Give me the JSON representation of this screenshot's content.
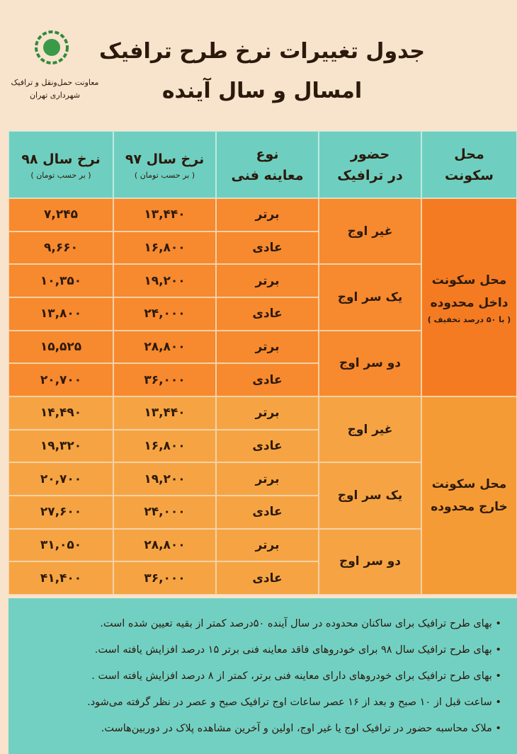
{
  "header": {
    "title_line1": "جدول تغییرات نرخ طرح ترافیک",
    "title_line2": "امسال و سال آینده",
    "org_line1": "معاونت حمل‌ونقل و ترافیک",
    "org_line2": "شهرداری تهران"
  },
  "table": {
    "columns": {
      "residence": [
        "محل",
        "سکونت"
      ],
      "presence": [
        "حضور",
        "در ترافیک"
      ],
      "type": [
        "نوع",
        "معاینه فنی"
      ],
      "rate97": [
        "نرخ سال ۹۷",
        "( بر حسب تومان )"
      ],
      "rate98": [
        "نرخ سال ۹۸",
        "( بر حسب تومان )"
      ]
    },
    "groups": [
      {
        "residence": [
          "محل سکونت",
          "داخل محدوده",
          "( با ۵۰ درصد تخفیف )"
        ],
        "presence": [
          {
            "label": "غیر اوج",
            "rows": [
              {
                "type": "برتر",
                "rate97": "۱۳,۴۴۰",
                "rate98": "۷,۲۴۵"
              },
              {
                "type": "عادی",
                "rate97": "۱۶,۸۰۰",
                "rate98": "۹,۶۶۰"
              }
            ]
          },
          {
            "label": "یک سر اوج",
            "rows": [
              {
                "type": "برتر",
                "rate97": "۱۹,۲۰۰",
                "rate98": "۱۰,۳۵۰"
              },
              {
                "type": "عادی",
                "rate97": "۲۴,۰۰۰",
                "rate98": "۱۳,۸۰۰"
              }
            ]
          },
          {
            "label": "دو سر اوج",
            "rows": [
              {
                "type": "برتر",
                "rate97": "۲۸,۸۰۰",
                "rate98": "۱۵,۵۲۵"
              },
              {
                "type": "عادی",
                "rate97": "۳۶,۰۰۰",
                "rate98": "۲۰,۷۰۰"
              }
            ]
          }
        ]
      },
      {
        "residence": [
          "محل سکونت",
          "خارج محدوده"
        ],
        "presence": [
          {
            "label": "غیر اوج",
            "rows": [
              {
                "type": "برتر",
                "rate97": "۱۳,۴۴۰",
                "rate98": "۱۴,۴۹۰"
              },
              {
                "type": "عادی",
                "rate97": "۱۶,۸۰۰",
                "rate98": "۱۹,۳۲۰"
              }
            ]
          },
          {
            "label": "یک سر اوج",
            "rows": [
              {
                "type": "برتر",
                "rate97": "۱۹,۲۰۰",
                "rate98": "۲۰,۷۰۰"
              },
              {
                "type": "عادی",
                "rate97": "۲۴,۰۰۰",
                "rate98": "۲۷,۶۰۰"
              }
            ]
          },
          {
            "label": "دو سر اوج",
            "rows": [
              {
                "type": "برتر",
                "rate97": "۲۸,۸۰۰",
                "rate98": "۳۱,۰۵۰"
              },
              {
                "type": "عادی",
                "rate97": "۳۶,۰۰۰",
                "rate98": "۴۱,۴۰۰"
              }
            ]
          }
        ]
      }
    ]
  },
  "notes": [
    "بهای طرح ترافیک برای ساکنان محدوده در سال آینده ۵۰درصد کمتر از بقیه تعیین شده است.",
    "بهای طرح ترافیک سال ۹۸ برای خودروهای فاقد معاینه فنی برتر ۱۵ درصد افزایش یافته است.",
    "بهای طرح ترافیک برای خودروهای دارای معاینه فنی برتر، کمتر از ۸ درصد افزایش یافته است .",
    "ساعت قبل از ۱۰ صبح و بعد از ۱۶ عصر ساعات اوج ترافیک صبح و عصر در نظر گرفته می‌شود.",
    "ملاک محاسبه حضور در ترافیک اوج یا غیر اوج، اولین و آخرین مشاهده پلاک در دوربین‌هاست."
  ]
}
